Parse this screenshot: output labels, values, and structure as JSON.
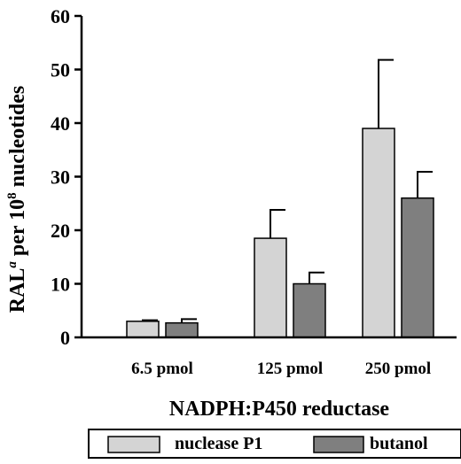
{
  "chart_data": {
    "type": "bar",
    "categories": [
      "6.5 pmol",
      "125 pmol",
      "250 pmol"
    ],
    "series": [
      {
        "name": "nuclease P1",
        "color": "#d4d4d4",
        "values": [
          3,
          18.5,
          39
        ],
        "errors": [
          0.2,
          5.3,
          12.8
        ]
      },
      {
        "name": "butanol",
        "color": "#7f7f7f",
        "values": [
          2.7,
          10,
          26
        ],
        "errors": [
          0.7,
          2.1,
          4.9
        ]
      }
    ],
    "xlabel": "NADPH:P450 reductase",
    "ylabel": {
      "prefix": "RAL",
      "prefix_superscript": "a",
      "middle": " per 10",
      "middle_superscript": "8",
      "suffix": " nucleotides"
    },
    "ylim": [
      0,
      60
    ],
    "yticks": [
      0,
      10,
      20,
      30,
      40,
      50,
      60
    ],
    "legend_position": "bottom",
    "grid": false
  }
}
